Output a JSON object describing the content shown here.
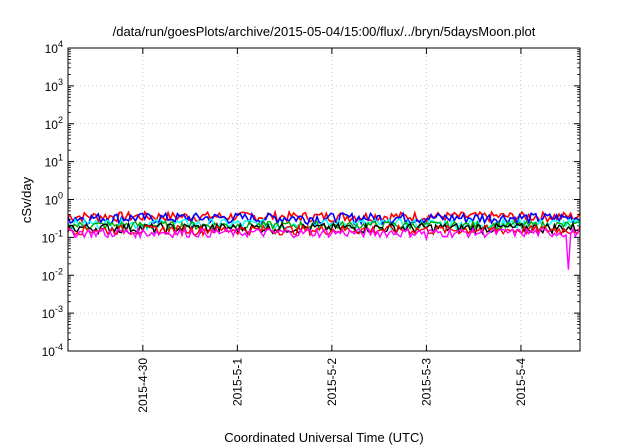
{
  "chart_data": {
    "type": "line",
    "title": "/data/run/goesPlots/archive/2015-05-04/15:00/flux/../bryn/5daysMoon.plot",
    "xlabel": "Coordinated Universal Time (UTC)",
    "ylabel": "cSv/day",
    "yscale": "log",
    "ylim": [
      0.0001,
      10000
    ],
    "xlim": [
      "2015-04-29 05:00",
      "2015-05-04 15:00"
    ],
    "grid": true,
    "y_ticks": [
      {
        "value": 0.0001,
        "base": "10",
        "exp": "-4"
      },
      {
        "value": 0.001,
        "base": "10",
        "exp": "-3"
      },
      {
        "value": 0.01,
        "base": "10",
        "exp": "-2"
      },
      {
        "value": 0.1,
        "base": "10",
        "exp": "-1"
      },
      {
        "value": 1,
        "base": "10",
        "exp": "0"
      },
      {
        "value": 10,
        "base": "10",
        "exp": "1"
      },
      {
        "value": 100,
        "base": "10",
        "exp": "2"
      },
      {
        "value": 1000,
        "base": "10",
        "exp": "3"
      },
      {
        "value": 10000,
        "base": "10",
        "exp": "4"
      }
    ],
    "x_ticks": [
      {
        "value": "2015-04-30",
        "label": "2015-4-30"
      },
      {
        "value": "2015-05-01",
        "label": "2015-5-1"
      },
      {
        "value": "2015-05-02",
        "label": "2015-5-2"
      },
      {
        "value": "2015-05-03",
        "label": "2015-5-3"
      },
      {
        "value": "2015-05-04",
        "label": "2015-5-4"
      }
    ],
    "series": [
      {
        "color": "#ff0000",
        "level": 0.36,
        "spread": 0.12,
        "dips": []
      },
      {
        "color": "#0000ff",
        "level": 0.33,
        "spread": 0.12,
        "dips": []
      },
      {
        "color": "#00ffff",
        "level": 0.23,
        "spread": 0.08,
        "dips": []
      },
      {
        "color": "#00aa00",
        "level": 0.21,
        "spread": 0.06,
        "dips": []
      },
      {
        "color": "#000000",
        "level": 0.18,
        "spread": 0.06,
        "dips": []
      },
      {
        "color": "#ff0000",
        "level": 0.16,
        "spread": 0.05,
        "dips": []
      },
      {
        "color": "#ff00ff",
        "level": 0.135,
        "spread": 0.04,
        "dips": [
          {
            "x": "2015-04-29 15:00",
            "y": 0.1
          },
          {
            "x": "2015-05-03 00:00",
            "y": 0.09
          },
          {
            "x": "2015-05-04 12:00",
            "y": 0.014
          }
        ]
      }
    ]
  }
}
